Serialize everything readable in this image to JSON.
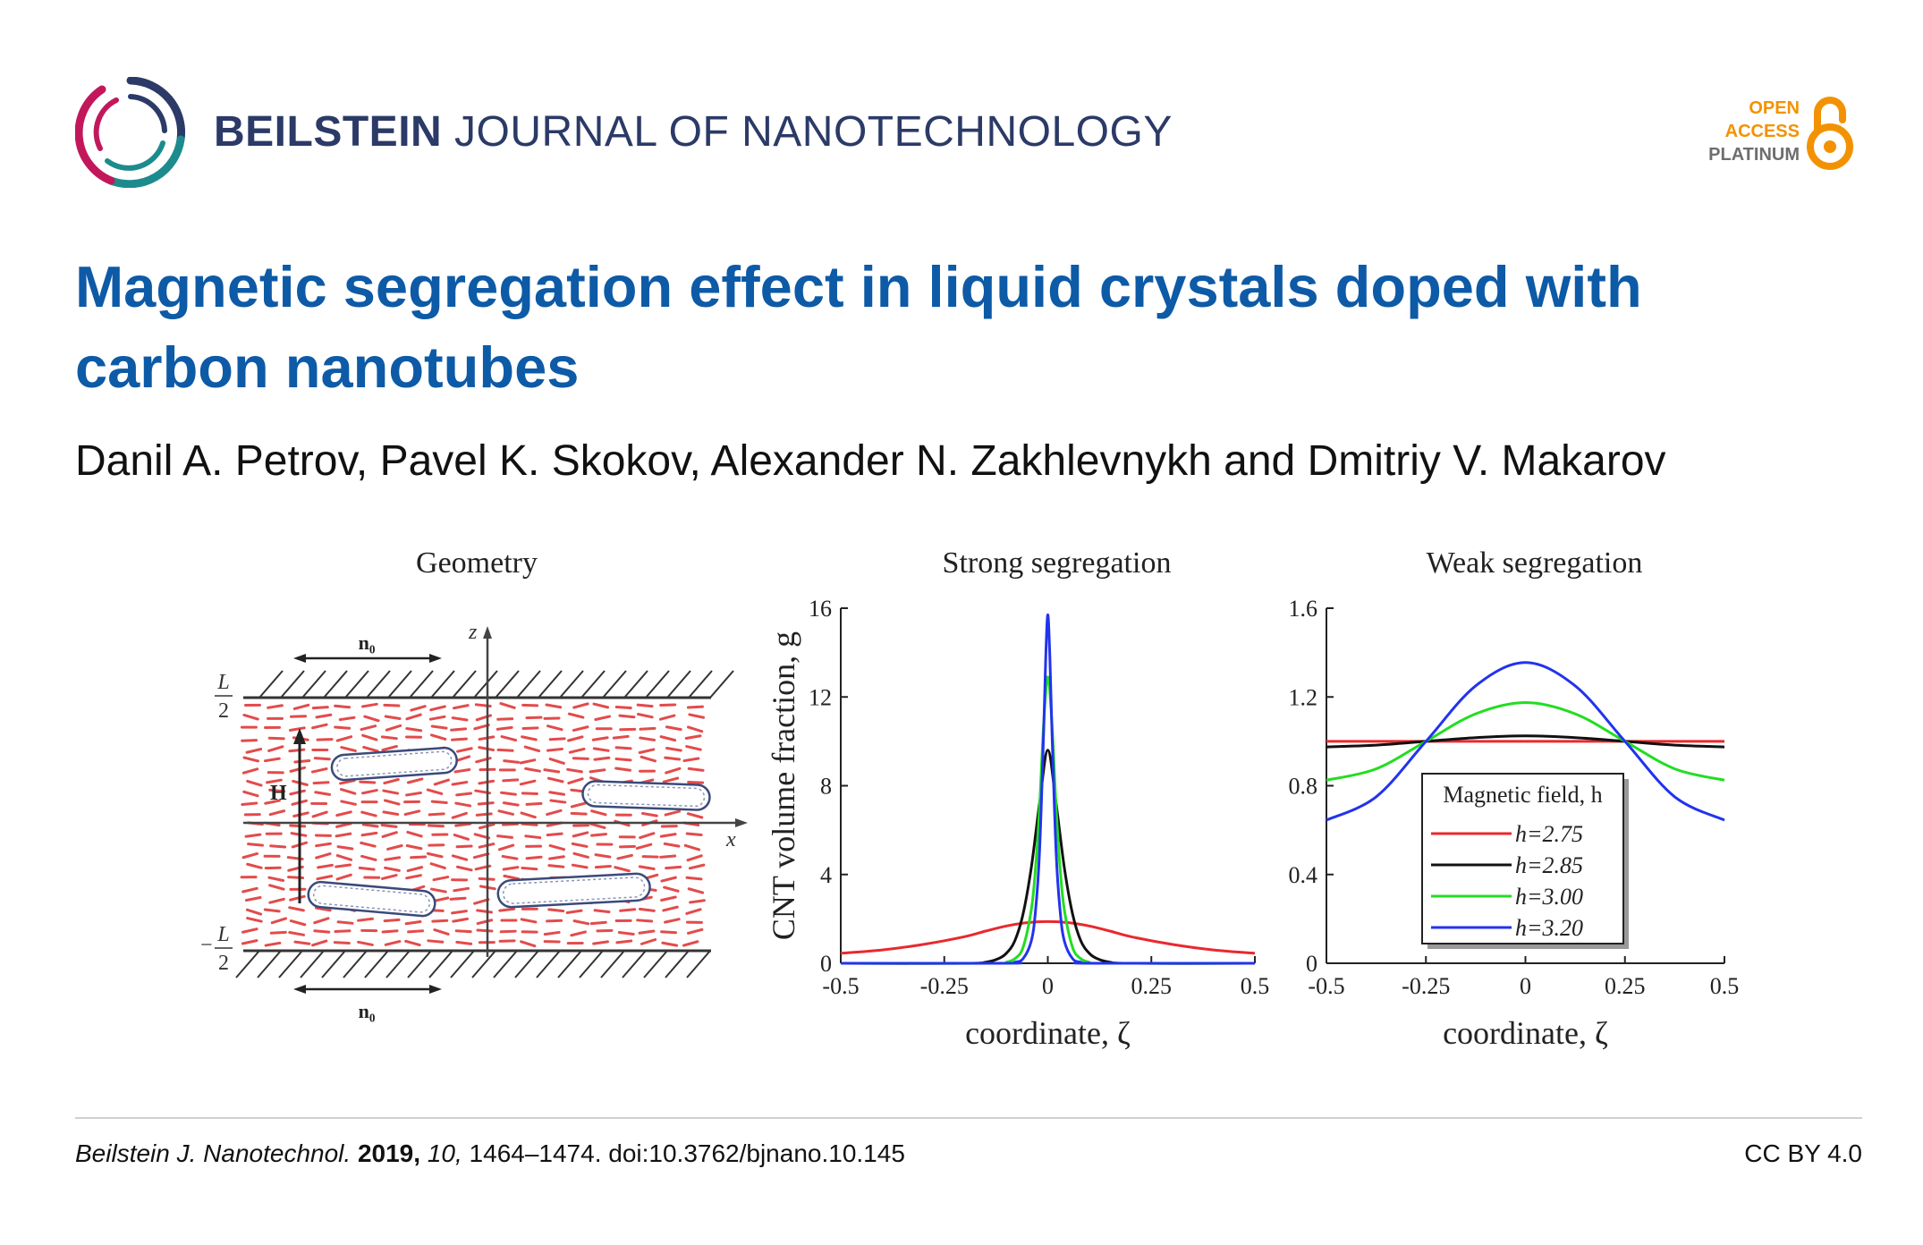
{
  "journal": {
    "name_bold": "BEILSTEIN",
    "name_rest": "JOURNAL OF NANOTECHNOLOGY",
    "badge": [
      "OPEN",
      "ACCESS",
      "PLATINUM"
    ]
  },
  "article": {
    "title": "Magnetic segregation effect in liquid crystals doped with carbon nanotubes",
    "authors": "Danil A. Petrov, Pavel K. Skokov, Alexander N. Zakhlevnykh and Dmitriy V. Makarov"
  },
  "figure": {
    "geometry": {
      "title": "Geometry",
      "director_label": "n₀",
      "field_label": "H",
      "z_label": "z",
      "x_label": "x",
      "top_label_num": "L",
      "top_label_den": "2",
      "bottom_label_sign": "−",
      "bottom_label_num": "L",
      "bottom_label_den": "2"
    }
  },
  "chart_data": [
    {
      "type": "line",
      "title": "Strong segregation",
      "xlabel": "coordinate, ζ",
      "ylabel": "CNT volume fraction, g",
      "xlim": [
        -0.5,
        0.5
      ],
      "ylim": [
        0,
        16
      ],
      "xticks": [
        "-0.5",
        "-0.25",
        "0",
        "0.25",
        "0.5"
      ],
      "yticks": [
        "0",
        "4",
        "8",
        "12",
        "16"
      ],
      "grid": false,
      "series": [
        {
          "color": "#e8292f",
          "x": [
            -0.5,
            -0.4,
            -0.3,
            -0.2,
            -0.15,
            -0.1,
            -0.05,
            0,
            0.05,
            0.1,
            0.15,
            0.2,
            0.3,
            0.4,
            0.5
          ],
          "y": [
            0.45,
            0.6,
            0.85,
            1.2,
            1.45,
            1.68,
            1.83,
            1.88,
            1.83,
            1.68,
            1.45,
            1.2,
            0.85,
            0.6,
            0.45
          ]
        },
        {
          "color": "#111111",
          "x": [
            -0.5,
            -0.2,
            -0.15,
            -0.12,
            -0.1,
            -0.08,
            -0.06,
            -0.04,
            -0.02,
            0,
            0.02,
            0.04,
            0.06,
            0.08,
            0.1,
            0.12,
            0.15,
            0.2,
            0.5
          ],
          "y": [
            0,
            0,
            0.05,
            0.2,
            0.45,
            1.0,
            2.2,
            4.3,
            7.2,
            9.6,
            7.2,
            4.3,
            2.2,
            1.0,
            0.45,
            0.2,
            0.05,
            0,
            0
          ]
        },
        {
          "color": "#22dd22",
          "x": [
            -0.5,
            -0.12,
            -0.1,
            -0.08,
            -0.06,
            -0.04,
            -0.03,
            -0.02,
            -0.01,
            0,
            0.01,
            0.02,
            0.03,
            0.04,
            0.06,
            0.08,
            0.1,
            0.12,
            0.5
          ],
          "y": [
            0,
            0,
            0.05,
            0.2,
            0.7,
            2.4,
            4.2,
            7.0,
            10.8,
            12.9,
            10.8,
            7.0,
            4.2,
            2.4,
            0.7,
            0.2,
            0.05,
            0,
            0
          ]
        },
        {
          "color": "#2233ee",
          "x": [
            -0.5,
            -0.1,
            -0.08,
            -0.06,
            -0.04,
            -0.03,
            -0.02,
            -0.01,
            -0.005,
            0,
            0.005,
            0.01,
            0.02,
            0.03,
            0.04,
            0.06,
            0.08,
            0.1,
            0.5
          ],
          "y": [
            0,
            0,
            0.05,
            0.2,
            1.0,
            2.3,
            5.0,
            10.5,
            13.8,
            15.7,
            13.8,
            10.5,
            5.0,
            2.3,
            1.0,
            0.2,
            0.05,
            0,
            0
          ]
        }
      ]
    },
    {
      "type": "line",
      "title": "Weak segregation",
      "xlabel": "coordinate, ζ",
      "ylabel": "",
      "xlim": [
        -0.5,
        0.5
      ],
      "ylim": [
        0,
        1.6
      ],
      "xticks": [
        "-0.5",
        "-0.25",
        "0",
        "0.25",
        "0.5"
      ],
      "yticks": [
        "0",
        "0.4",
        "0.8",
        "1.2",
        "1.6"
      ],
      "grid": false,
      "legend": {
        "title": "Magnetic field, h",
        "position": "bottom-center"
      },
      "series": [
        {
          "name": "h=2.75",
          "color": "#e8292f",
          "x": [
            -0.5,
            -0.25,
            0,
            0.25,
            0.5
          ],
          "y": [
            1.0,
            1.0,
            1.0,
            1.0,
            1.0
          ]
        },
        {
          "name": "h=2.85",
          "color": "#111111",
          "x": [
            -0.5,
            -0.375,
            -0.25,
            -0.125,
            0,
            0.125,
            0.25,
            0.375,
            0.5
          ],
          "y": [
            0.975,
            0.983,
            1.0,
            1.017,
            1.025,
            1.017,
            1.0,
            0.983,
            0.975
          ]
        },
        {
          "name": "h=3.00",
          "color": "#22dd22",
          "x": [
            -0.5,
            -0.375,
            -0.25,
            -0.125,
            0,
            0.125,
            0.25,
            0.375,
            0.5
          ],
          "y": [
            0.825,
            0.876,
            1.0,
            1.124,
            1.175,
            1.124,
            1.0,
            0.876,
            0.825
          ]
        },
        {
          "name": "h=3.20",
          "color": "#2233ee",
          "x": [
            -0.5,
            -0.375,
            -0.25,
            -0.125,
            0,
            0.125,
            0.25,
            0.375,
            0.5
          ],
          "y": [
            0.645,
            0.75,
            1.0,
            1.25,
            1.355,
            1.25,
            1.0,
            0.75,
            0.645
          ]
        }
      ]
    }
  ],
  "citation": {
    "journal_abbrev": "Beilstein J. Nanotechnol.",
    "year": "2019,",
    "volume": "10,",
    "rest": "1464–1474. doi:10.3762/bjnano.10.145",
    "license": "CC BY 4.0"
  }
}
